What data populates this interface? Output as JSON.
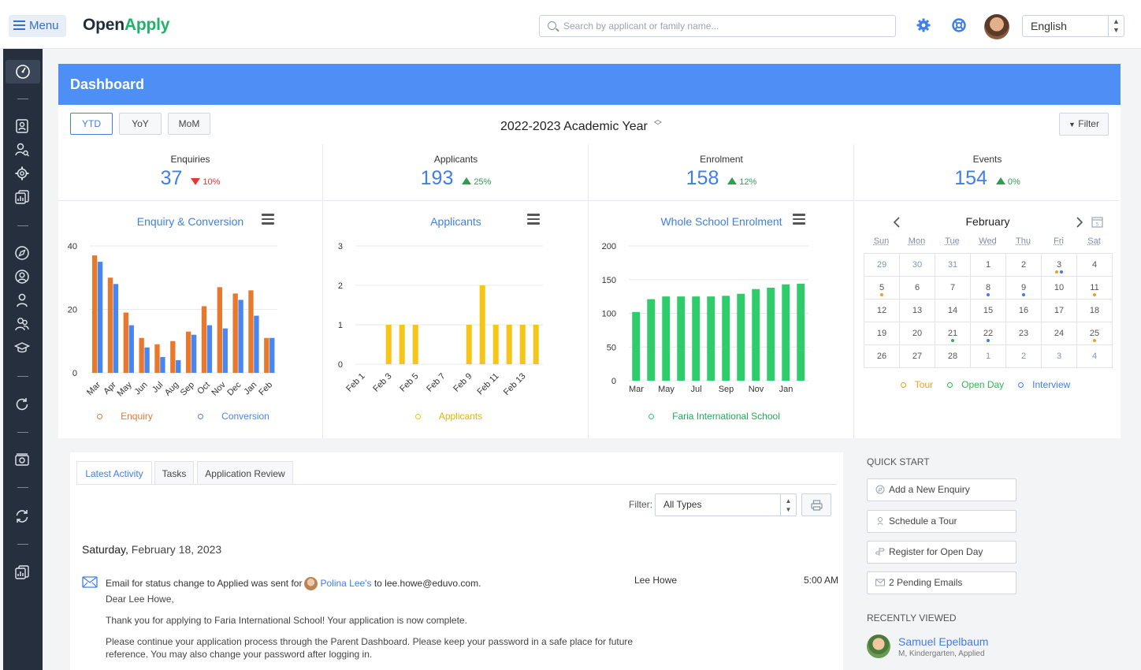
{
  "header": {
    "menu_label": "Menu",
    "logo_open": "Open",
    "logo_apply": "Apply",
    "search_placeholder": "Search by applicant or family name...",
    "language": "English"
  },
  "dashboard": {
    "title": "Dashboard",
    "period_buttons": [
      "YTD",
      "YoY",
      "MoM"
    ],
    "active_period": "YTD",
    "academic_year": "2022-2023 Academic Year",
    "filter_label": "Filter"
  },
  "stats": [
    {
      "label": "Enquiries",
      "value": "37",
      "change": "10%",
      "direction": "down"
    },
    {
      "label": "Applicants",
      "value": "193",
      "change": "25%",
      "direction": "up"
    },
    {
      "label": "Enrolment",
      "value": "158",
      "change": "12%",
      "direction": "up"
    },
    {
      "label": "Events",
      "value": "154",
      "change": "0%",
      "direction": "up"
    }
  ],
  "chart_data": [
    {
      "type": "bar",
      "title": "Enquiry & Conversion",
      "categories": [
        "Mar",
        "Apr",
        "May",
        "Jun",
        "Jul",
        "Aug",
        "Sep",
        "Oct",
        "Nov",
        "Dec",
        "Jan",
        "Feb"
      ],
      "series": [
        {
          "name": "Enquiry",
          "color": "#e8792c",
          "values": [
            37,
            30,
            19,
            11,
            9,
            10,
            13,
            21,
            27,
            25,
            26,
            11
          ]
        },
        {
          "name": "Conversion",
          "color": "#4a86f0",
          "values": [
            35,
            28,
            15,
            8,
            5,
            4,
            12,
            15,
            14,
            23,
            18,
            11
          ]
        }
      ],
      "yticks": [
        0,
        20,
        40
      ],
      "ylim": [
        0,
        40
      ],
      "legend": "bottom"
    },
    {
      "type": "bar",
      "title": "Applicants",
      "categories": [
        "Feb 1",
        "Feb 2",
        "Feb 3",
        "Feb 4",
        "Feb 5",
        "Feb 6",
        "Feb 7",
        "Feb 8",
        "Feb 9",
        "Feb 10",
        "Feb 11",
        "Feb 12",
        "Feb 13",
        "Feb 14"
      ],
      "tick_labels": [
        "Feb 1",
        "Feb 3",
        "Feb 5",
        "Feb 7",
        "Feb 9",
        "Feb 11",
        "Feb 13"
      ],
      "series": [
        {
          "name": "Applicants",
          "color": "#f5c518",
          "values": [
            0,
            0,
            1,
            1,
            1,
            0,
            0,
            0,
            1,
            2,
            1,
            1,
            1,
            1
          ]
        }
      ],
      "yticks": [
        0,
        1,
        2,
        3
      ],
      "ylim": [
        0,
        3
      ],
      "legend": "bottom"
    },
    {
      "type": "bar",
      "title": "Whole School Enrolment",
      "categories": [
        "Mar",
        "Apr",
        "May",
        "Jun",
        "Jul",
        "Aug",
        "Sep",
        "Oct",
        "Nov",
        "Dec",
        "Jan",
        "Feb"
      ],
      "tick_labels": [
        "Mar",
        "May",
        "Jul",
        "Sep",
        "Nov",
        "Jan"
      ],
      "series": [
        {
          "name": "Faria International School",
          "color": "#2ecc6a",
          "values": [
            102,
            121,
            125,
            125,
            125,
            125,
            126,
            129,
            136,
            138,
            143,
            144
          ]
        }
      ],
      "yticks": [
        0,
        50,
        100,
        150,
        200
      ],
      "ylim": [
        0,
        200
      ],
      "legend": "bottom"
    }
  ],
  "calendar": {
    "month": "February",
    "weekdays": [
      "Sun",
      "Mon",
      "Tue",
      "Wed",
      "Thu",
      "Fri",
      "Sat"
    ],
    "weeks": [
      [
        {
          "d": "29",
          "o": true
        },
        {
          "d": "30",
          "o": true
        },
        {
          "d": "31",
          "o": true
        },
        {
          "d": "1"
        },
        {
          "d": "2"
        },
        {
          "d": "3",
          "dots": [
            "tour",
            "interview"
          ]
        },
        {
          "d": "4"
        }
      ],
      [
        {
          "d": "5",
          "dots": [
            "tour"
          ]
        },
        {
          "d": "6"
        },
        {
          "d": "7"
        },
        {
          "d": "8",
          "dots": [
            "interview"
          ]
        },
        {
          "d": "9",
          "dots": [
            "interview"
          ]
        },
        {
          "d": "10"
        },
        {
          "d": "11",
          "dots": [
            "tour"
          ]
        }
      ],
      [
        {
          "d": "12"
        },
        {
          "d": "13"
        },
        {
          "d": "14"
        },
        {
          "d": "15"
        },
        {
          "d": "16"
        },
        {
          "d": "17"
        },
        {
          "d": "18"
        }
      ],
      [
        {
          "d": "19"
        },
        {
          "d": "20"
        },
        {
          "d": "21",
          "dots": [
            "openday"
          ]
        },
        {
          "d": "22",
          "dots": [
            "interview"
          ]
        },
        {
          "d": "23"
        },
        {
          "d": "24"
        },
        {
          "d": "25",
          "dots": [
            "tour"
          ]
        }
      ],
      [
        {
          "d": "26"
        },
        {
          "d": "27"
        },
        {
          "d": "28"
        },
        {
          "d": "1",
          "o": true
        },
        {
          "d": "2",
          "o": true
        },
        {
          "d": "3",
          "o": true
        },
        {
          "d": "4",
          "o": true
        }
      ]
    ],
    "legend": [
      {
        "key": "tour",
        "label": "Tour",
        "color": "#f0a020"
      },
      {
        "key": "openday",
        "label": "Open Day",
        "color": "#2eb84f"
      },
      {
        "key": "interview",
        "label": "Interview",
        "color": "#3f7ee8"
      }
    ]
  },
  "activity": {
    "tabs": [
      "Latest Activity",
      "Tasks",
      "Application Review"
    ],
    "filter_label": "Filter:",
    "filter_value": "All Types",
    "date_day": "Saturday,",
    "date_rest": " February 18, 2023",
    "item": {
      "text_before": "Email for status change to Applied was sent for",
      "person": "Polina Lee's",
      "text_after": "to lee.howe@eduvo.com.",
      "user": "Lee Howe",
      "time": "5:00 AM",
      "body": [
        "Dear Lee Howe,",
        "Thank you for applying to Faria International School! Your application is now complete.",
        "Please continue your application process through the Parent Dashboard. Please keep your password in a safe place for future reference. You may also change your password after logging in."
      ]
    }
  },
  "quick_start": {
    "title": "QUICK START",
    "buttons": [
      "Add a New Enquiry",
      "Schedule a Tour",
      "Register for Open Day",
      "2 Pending Emails"
    ]
  },
  "recently_viewed": {
    "title": "RECENTLY VIEWED",
    "name": "Samuel Epelbaum",
    "detail": "M, Kindergarten, Applied"
  }
}
